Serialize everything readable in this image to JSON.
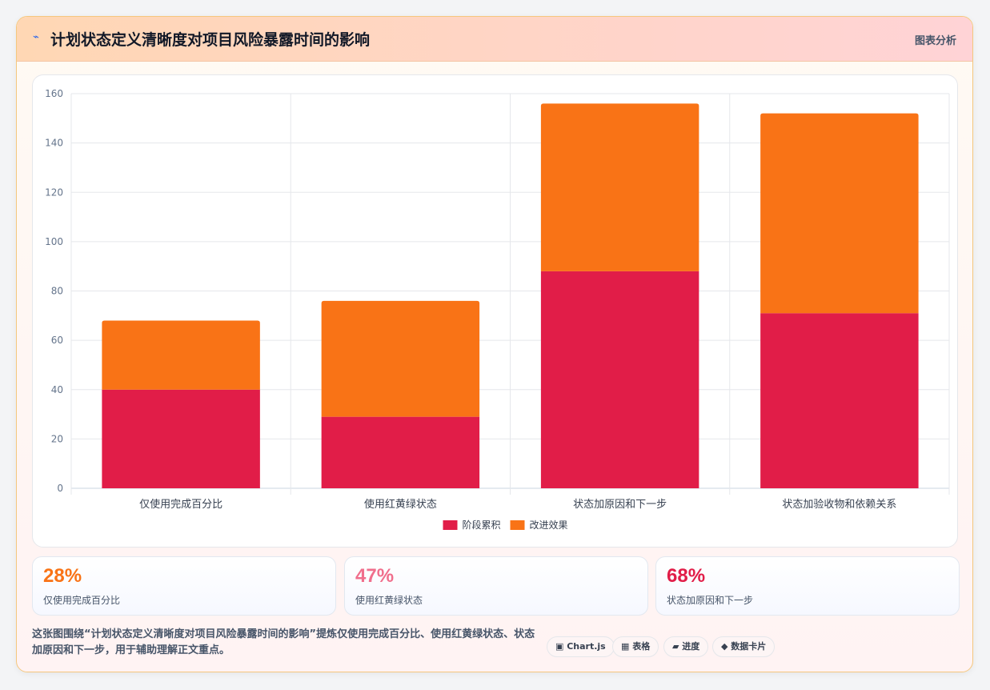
{
  "header": {
    "icon": "lightning-icon",
    "icon_glyph": "⌁",
    "title": "计划状态定义清晰度对项目风险暴露时间的影响",
    "tag": "图表分析"
  },
  "chart_data": {
    "type": "bar",
    "stacked": true,
    "categories": [
      "仅使用完成百分比",
      "使用红黄绿状态",
      "状态加原因和下一步",
      "状态加验收物和依赖关系"
    ],
    "series": [
      {
        "name": "阶段累积",
        "color": "#e11d48",
        "values": [
          40,
          29,
          88,
          71
        ]
      },
      {
        "name": "改进效果",
        "color": "#f97316",
        "values": [
          28,
          47,
          68,
          81
        ]
      }
    ],
    "ylim": [
      0,
      160
    ],
    "yticks": [
      0,
      20,
      40,
      60,
      80,
      100,
      120,
      140,
      160
    ],
    "grid": true,
    "legend": "bottom"
  },
  "stats": [
    {
      "value": "28%",
      "label": "仅使用完成百分比",
      "color": "#f97316"
    },
    {
      "value": "47%",
      "label": "使用红黄绿状态",
      "color": "#f06e8c"
    },
    {
      "value": "68%",
      "label": "状态加原因和下一步",
      "color": "#e11d48"
    }
  ],
  "footer": {
    "description": "这张图围绕“计划状态定义清晰度对项目风险暴露时间的影响”提炼仅使用完成百分比、使用红黄绿状态、状态加原因和下一步，用于辅助理解正文重点。",
    "chips": [
      {
        "label": "▣ Chart.js",
        "icon": "chart-icon"
      },
      {
        "label": "▦ 表格",
        "icon": "table-icon"
      },
      {
        "label": "▰ 进度",
        "icon": "progress-icon"
      },
      {
        "label": "◆ 数据卡片",
        "icon": "card-icon"
      }
    ]
  }
}
